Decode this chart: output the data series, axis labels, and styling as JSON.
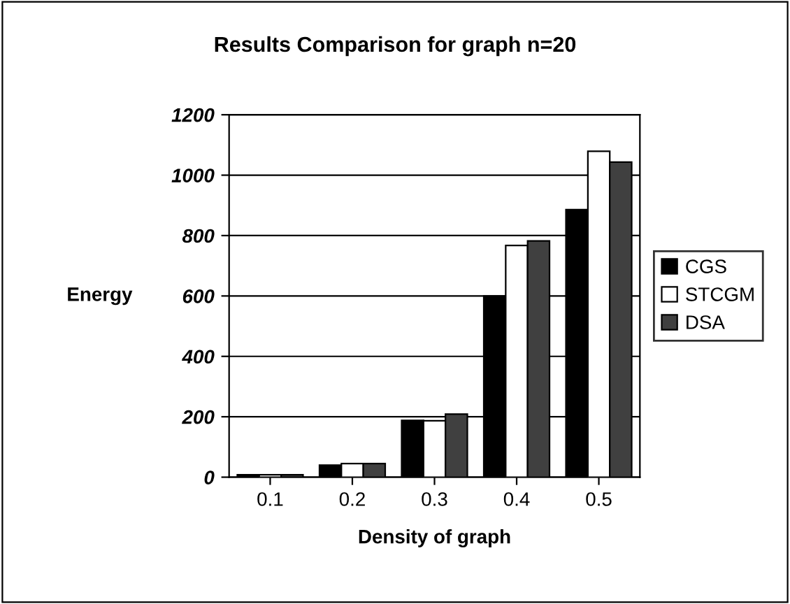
{
  "chart_data": {
    "type": "bar",
    "title": "Results Comparison for graph n=20",
    "xlabel": "Density of graph",
    "ylabel": "Energy",
    "categories": [
      "0.1",
      "0.2",
      "0.3",
      "0.4",
      "0.5"
    ],
    "series": [
      {
        "name": "CGS",
        "color": "#000000",
        "values": [
          8,
          40,
          188,
          600,
          886
        ]
      },
      {
        "name": "STCGM",
        "color": "#ffffff",
        "values": [
          8,
          45,
          187,
          767,
          1079
        ]
      },
      {
        "name": "DSA",
        "color": "#404040",
        "values": [
          8,
          45,
          209,
          782,
          1043
        ]
      }
    ],
    "ylim": [
      0,
      1200
    ],
    "yticks": [
      0,
      200,
      400,
      600,
      800,
      1000,
      1200
    ],
    "grid": "y",
    "legend": "right"
  }
}
